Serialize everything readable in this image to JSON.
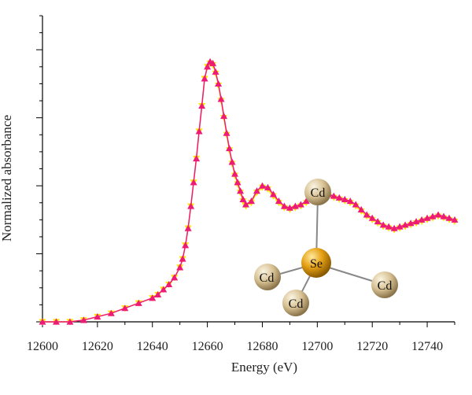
{
  "chart_data": {
    "type": "line",
    "xlabel": "Energy (eV)",
    "ylabel": "Normalized absorbance",
    "xlim": [
      12600,
      12750
    ],
    "ylim": [
      0,
      1.8
    ],
    "x_ticks": [
      12600,
      12620,
      12640,
      12660,
      12680,
      12700,
      12720,
      12740
    ],
    "series": [
      {
        "color": "#ffe600",
        "marker": "triangle-down",
        "x": [
          12600,
          12605,
          12610,
          12615,
          12620,
          12625,
          12630,
          12635,
          12640,
          12642,
          12644,
          12646,
          12648,
          12650,
          12651,
          12652,
          12653,
          12654,
          12655,
          12656,
          12657,
          12658,
          12659,
          12660,
          12661,
          12662,
          12663,
          12664,
          12665,
          12666,
          12667,
          12668,
          12669,
          12670,
          12671,
          12672,
          12673,
          12674,
          12676,
          12678,
          12680,
          12682,
          12684,
          12686,
          12688,
          12690,
          12692,
          12694,
          12696,
          12698,
          12700,
          12702,
          12704,
          12706,
          12708,
          12710,
          12712,
          12714,
          12716,
          12718,
          12720,
          12722,
          12724,
          12726,
          12728,
          12730,
          12732,
          12734,
          12736,
          12738,
          12740,
          12742,
          12744,
          12746,
          12748,
          12750
        ],
        "y": [
          0.0,
          0.0,
          0.0,
          0.01,
          0.03,
          0.05,
          0.08,
          0.11,
          0.14,
          0.16,
          0.19,
          0.22,
          0.26,
          0.32,
          0.37,
          0.45,
          0.55,
          0.68,
          0.82,
          0.96,
          1.12,
          1.27,
          1.43,
          1.5,
          1.52,
          1.51,
          1.46,
          1.39,
          1.3,
          1.2,
          1.1,
          1.01,
          0.93,
          0.86,
          0.81,
          0.76,
          0.71,
          0.68,
          0.7,
          0.76,
          0.79,
          0.78,
          0.74,
          0.7,
          0.67,
          0.66,
          0.67,
          0.68,
          0.7,
          0.72,
          0.74,
          0.75,
          0.74,
          0.73,
          0.72,
          0.71,
          0.7,
          0.68,
          0.65,
          0.62,
          0.6,
          0.58,
          0.56,
          0.55,
          0.54,
          0.55,
          0.56,
          0.57,
          0.58,
          0.59,
          0.6,
          0.61,
          0.62,
          0.61,
          0.6,
          0.59
        ]
      },
      {
        "color": "#ee1a78",
        "marker": "triangle-up",
        "x": [
          12600,
          12605,
          12610,
          12615,
          12620,
          12625,
          12630,
          12635,
          12640,
          12642,
          12644,
          12646,
          12648,
          12650,
          12651,
          12652,
          12653,
          12654,
          12655,
          12656,
          12657,
          12658,
          12659,
          12660,
          12661,
          12662,
          12663,
          12664,
          12665,
          12666,
          12667,
          12668,
          12669,
          12670,
          12671,
          12672,
          12673,
          12674,
          12676,
          12678,
          12680,
          12682,
          12684,
          12686,
          12688,
          12690,
          12692,
          12694,
          12696,
          12698,
          12700,
          12702,
          12704,
          12706,
          12708,
          12710,
          12712,
          12714,
          12716,
          12718,
          12720,
          12722,
          12724,
          12726,
          12728,
          12730,
          12732,
          12734,
          12736,
          12738,
          12740,
          12742,
          12744,
          12746,
          12748,
          12750
        ],
        "y": [
          0.0,
          0.0,
          0.0,
          0.01,
          0.03,
          0.05,
          0.08,
          0.11,
          0.14,
          0.16,
          0.19,
          0.22,
          0.26,
          0.32,
          0.37,
          0.45,
          0.55,
          0.68,
          0.82,
          0.96,
          1.12,
          1.27,
          1.43,
          1.5,
          1.53,
          1.52,
          1.47,
          1.4,
          1.31,
          1.21,
          1.11,
          1.02,
          0.94,
          0.87,
          0.82,
          0.77,
          0.72,
          0.69,
          0.71,
          0.77,
          0.8,
          0.79,
          0.75,
          0.71,
          0.68,
          0.67,
          0.68,
          0.69,
          0.71,
          0.73,
          0.75,
          0.76,
          0.75,
          0.74,
          0.73,
          0.72,
          0.71,
          0.69,
          0.66,
          0.63,
          0.61,
          0.59,
          0.57,
          0.56,
          0.55,
          0.56,
          0.57,
          0.58,
          0.59,
          0.6,
          0.61,
          0.62,
          0.63,
          0.62,
          0.61,
          0.6
        ]
      }
    ],
    "inset": {
      "type": "molecule",
      "center": "Se",
      "atoms": [
        "Cd",
        "Cd",
        "Cd",
        "Cd"
      ]
    }
  }
}
